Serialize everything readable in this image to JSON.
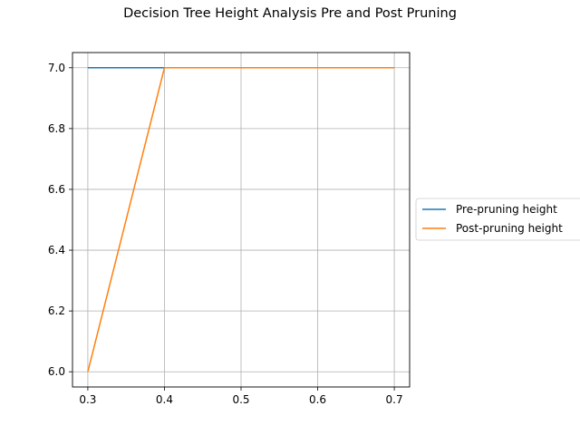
{
  "chart_data": {
    "type": "line",
    "title": "Decision Tree Height Analysis Pre and Post Pruning",
    "xlabel": "",
    "ylabel": "",
    "x": [
      0.3,
      0.4,
      0.5,
      0.6,
      0.7
    ],
    "series": [
      {
        "name": "Pre-pruning height",
        "values": [
          7.0,
          7.0,
          7.0,
          7.0,
          7.0
        ],
        "color": "#1f77b4"
      },
      {
        "name": "Post-pruning height",
        "values": [
          6.0,
          7.0,
          7.0,
          7.0,
          7.0
        ],
        "color": "#ff7f0e"
      }
    ],
    "xticks": [
      "0.3",
      "0.4",
      "0.5",
      "0.6",
      "0.7"
    ],
    "yticks": [
      "6.0",
      "6.2",
      "6.4",
      "6.6",
      "6.8",
      "7.0"
    ],
    "xlim": [
      0.28,
      0.72
    ],
    "ylim": [
      5.95,
      7.05
    ],
    "grid": true,
    "legend": "center-right outside"
  }
}
